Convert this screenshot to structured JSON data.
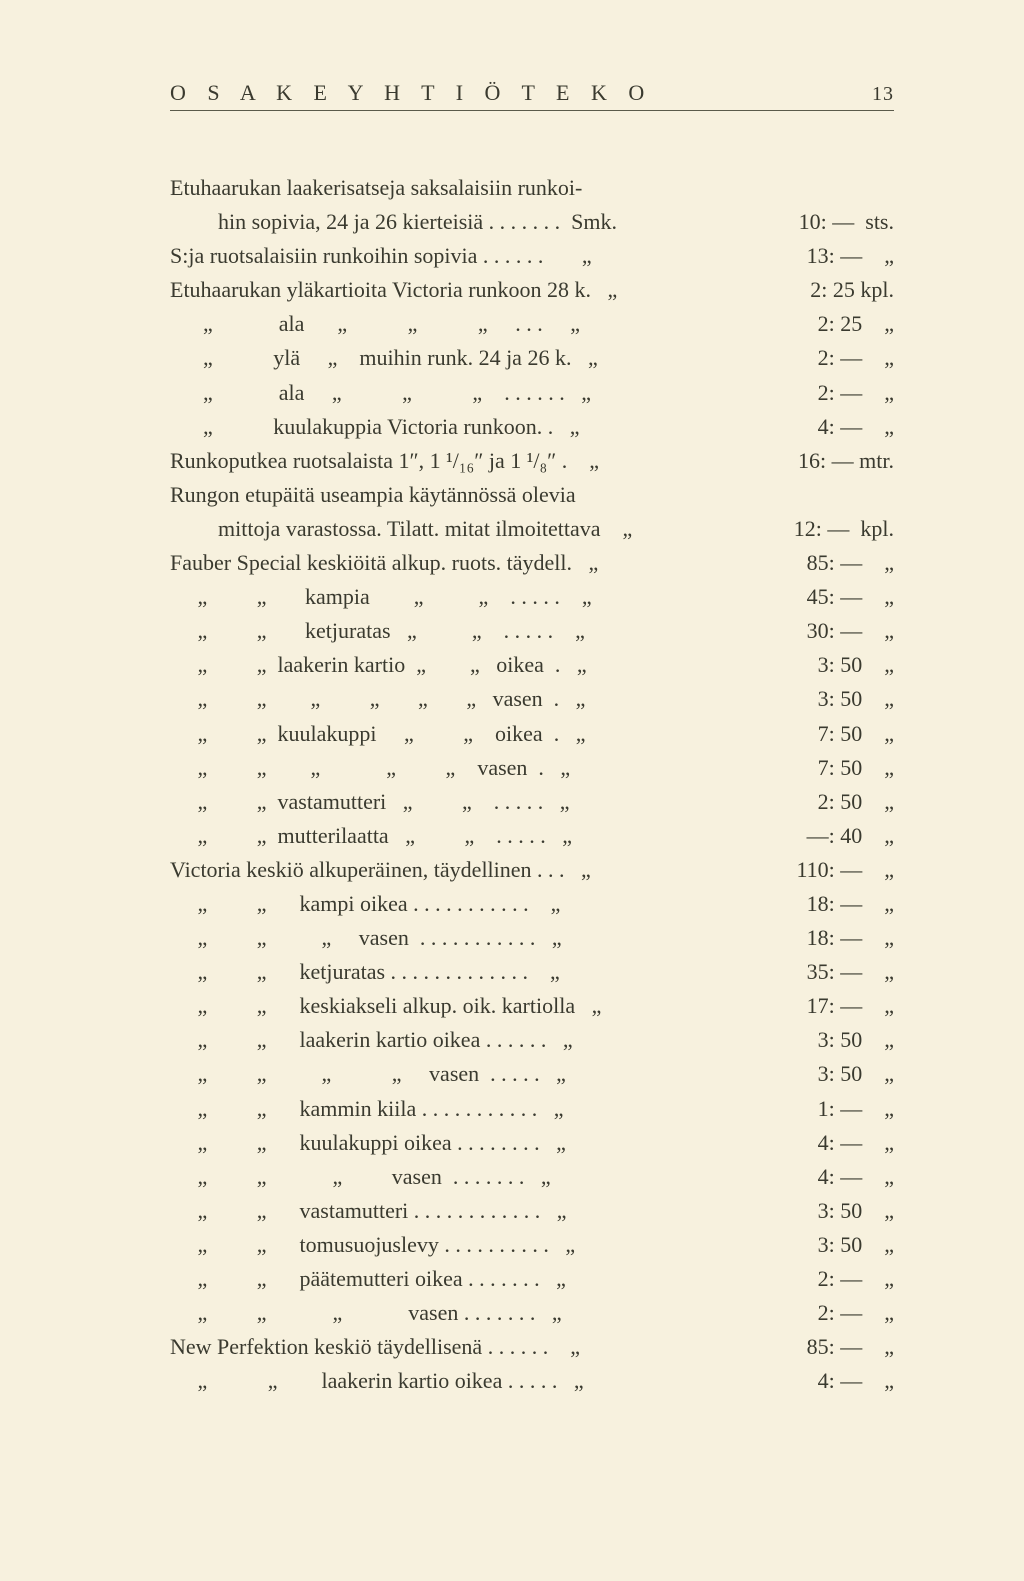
{
  "header": {
    "title": "O S A K E Y H T I Ö  T E K O",
    "page_number": "13"
  },
  "lines": [
    {
      "d": "Etuhaarukan laakerisatseja saksalaisiin runkoi-",
      "p": ""
    },
    {
      "d": "hin sopivia, 24 ja 26 kierteisiä . . . . . . .  Smk.",
      "p": "10: —  sts.",
      "indent": true
    },
    {
      "d": "S:ja ruotsalaisiin runkoihin sopivia . . . . . .       „",
      "p": "13: —    „"
    },
    {
      "d": "Etuhaarukan yläkartioita Victoria runkoon 28 k.   „",
      "p": "2: 25 kpl."
    },
    {
      "d": "      „            ala      „           „           „     . . .     „",
      "p": "2: 25    „"
    },
    {
      "d": "      „           ylä     „    muihin runk. 24 ja 26 k.   „",
      "p": "2: —    „"
    },
    {
      "d": "      „            ala     „           „           „    . . . . . .   „",
      "p": "2: —    „"
    },
    {
      "d": "      „           kuulakuppia Victoria runkoon. .   „",
      "p": "4: —    „"
    },
    {
      "d": "Runkoputkea ruotsalaista 1″, 1 ¹/₁₆″ ja 1 ¹/₈″ .    „",
      "p": "16: — mtr."
    },
    {
      "d": "Rungon etupäitä useampia käytännössä olevia",
      "p": ""
    },
    {
      "d": "mittoja varastossa. Tilatt. mitat ilmoitettava    „",
      "p": "12: —  kpl.",
      "indent": true
    },
    {
      "d": "Fauber Special keskiöitä alkup. ruots. täydell.   „",
      "p": "85: —    „"
    },
    {
      "d": "     „         „       kampia        „          „    . . . . .    „",
      "p": "45: —    „"
    },
    {
      "d": "     „         „       ketjuratas   „          „    . . . . .    „",
      "p": "30: —    „"
    },
    {
      "d": "     „         „  laakerin kartio  „        „   oikea  .   „",
      "p": "3: 50    „"
    },
    {
      "d": "     „         „        „         „       „       „   vasen  .   „",
      "p": "3: 50    „"
    },
    {
      "d": "     „         „  kuulakuppi     „         „    oikea  .   „",
      "p": "7: 50    „"
    },
    {
      "d": "     „         „        „            „         „    vasen  .   „",
      "p": "7: 50    „"
    },
    {
      "d": "     „         „  vastamutteri   „         „    . . . . .   „",
      "p": "2: 50    „"
    },
    {
      "d": "     „         „  mutterilaatta   „         „    . . . . .   „",
      "p": "—: 40    „"
    },
    {
      "d": "Victoria keskiö alkuperäinen, täydellinen . . .   „",
      "p": "110: —    „"
    },
    {
      "d": "     „         „      kampi oikea . . . . . . . . . . .    „",
      "p": "18: —    „"
    },
    {
      "d": "     „         „          „     vasen  . . . . . . . . . . .   „",
      "p": "18: —    „"
    },
    {
      "d": "     „         „      ketjuratas . . . . . . . . . . . . .    „",
      "p": "35: —    „"
    },
    {
      "d": "     „         „      keskiakseli alkup. oik. kartiolla   „",
      "p": "17: —    „"
    },
    {
      "d": "     „         „      laakerin kartio oikea . . . . . .   „",
      "p": "3: 50    „"
    },
    {
      "d": "     „         „          „           „     vasen  . . . . .   „",
      "p": "3: 50    „"
    },
    {
      "d": "     „         „      kammin kiila . . . . . . . . . . .   „",
      "p": "1: —    „"
    },
    {
      "d": "     „         „      kuulakuppi oikea . . . . . . . .   „",
      "p": "4: —    „"
    },
    {
      "d": "     „         „            „         vasen  . . . . . . .   „",
      "p": "4: —    „"
    },
    {
      "d": "     „         „      vastamutteri . . . . . . . . . . . .   „",
      "p": "3: 50    „"
    },
    {
      "d": "     „         „      tomusuojuslevy . . . . . . . . . .   „",
      "p": "3: 50    „"
    },
    {
      "d": "     „         „      päätemutteri oikea . . . . . . .   „",
      "p": "2: —    „"
    },
    {
      "d": "     „         „            „            vasen . . . . . . .   „",
      "p": "2: —    „"
    },
    {
      "d": "New Perfektion keskiö täydellisenä . . . . . .    „",
      "p": "85: —    „"
    },
    {
      "d": "     „           „        laakerin kartio oikea . . . . .   „",
      "p": "4: —    „"
    }
  ]
}
